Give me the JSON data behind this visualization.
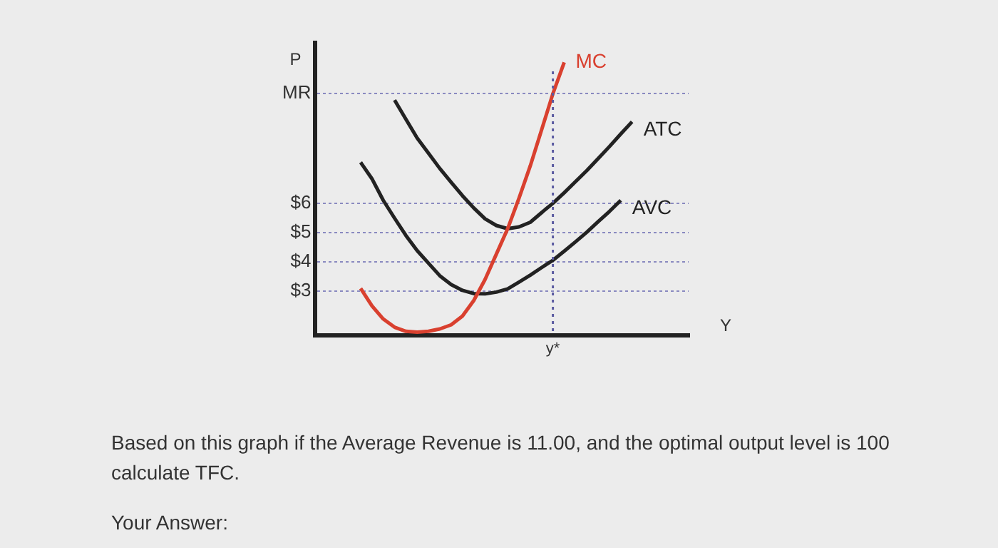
{
  "chart_data": {
    "type": "line",
    "xlabel": "Y",
    "ylabel": "P",
    "categories": [
      null,
      null,
      null,
      null,
      null,
      null,
      null,
      null,
      null,
      null,
      null,
      null,
      null,
      null,
      null,
      null,
      null,
      null,
      null,
      null,
      null,
      "y*",
      null,
      null,
      null,
      null,
      null,
      null,
      null,
      null,
      null,
      null,
      null,
      null
    ],
    "ylim": [
      1.5,
      11.5
    ],
    "yticks": [
      {
        "value": 3,
        "label": "$3"
      },
      {
        "value": 4,
        "label": "$4"
      },
      {
        "value": 5,
        "label": "$5"
      },
      {
        "value": 6,
        "label": "$6"
      },
      {
        "value": 9.76,
        "label": "MR"
      }
    ],
    "grid": "y",
    "line_style": "solid",
    "marker": "none",
    "legend": false,
    "ref_lines": [
      {
        "axis": "x",
        "value": "y*",
        "color": "#5a5aa0",
        "line_style": "dotted"
      }
    ],
    "series": [
      {
        "name": "MC",
        "color": "#d9402f",
        "values": [
          null,
          null,
          null,
          null,
          3.1,
          2.5,
          2.05,
          1.77,
          1.63,
          1.6,
          1.63,
          1.71,
          1.85,
          2.15,
          2.68,
          3.4,
          4.27,
          5.14,
          6.18,
          7.29,
          8.52,
          9.76,
          10.83,
          null,
          null,
          null,
          null,
          null,
          null,
          null,
          null,
          null,
          null,
          null
        ]
      },
      {
        "name": "ATC",
        "color": "#222222",
        "values": [
          null,
          null,
          null,
          null,
          null,
          null,
          null,
          9.54,
          8.89,
          8.24,
          7.72,
          7.2,
          6.73,
          6.27,
          5.85,
          5.48,
          5.25,
          5.14,
          5.2,
          5.36,
          5.69,
          6.01,
          6.37,
          6.75,
          7.13,
          7.54,
          7.95,
          8.38,
          8.8,
          null,
          null,
          null,
          null,
          null
        ]
      },
      {
        "name": "AVC",
        "color": "#222222",
        "values": [
          null,
          null,
          null,
          null,
          7.41,
          6.85,
          6.11,
          5.5,
          4.91,
          4.39,
          3.96,
          3.53,
          3.23,
          3.03,
          2.92,
          2.91,
          2.97,
          3.08,
          3.31,
          3.55,
          3.81,
          4.06,
          4.37,
          4.69,
          5.02,
          5.38,
          5.73,
          6.11,
          null,
          null,
          null,
          null,
          null,
          null
        ]
      }
    ],
    "annotations": [
      "Based on this graph if the Average Revenue is 11.00, and the optimal output level is 100 calculate TFC.",
      "Your Answer:"
    ]
  }
}
